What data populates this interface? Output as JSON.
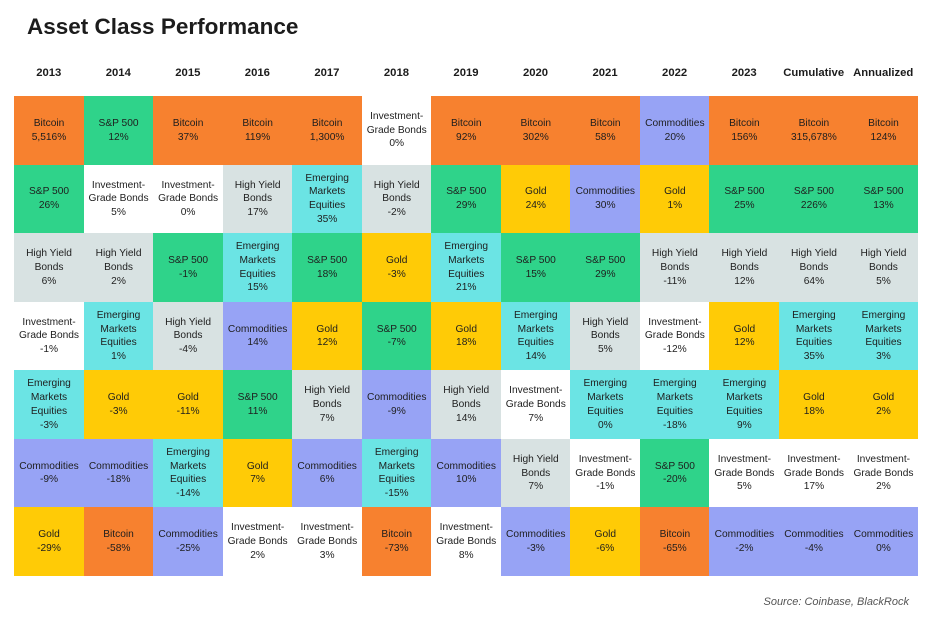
{
  "title": "Asset Class Performance",
  "source": "Source: Coinbase, BlackRock",
  "colors": {
    "Bitcoin": "#f7812f",
    "S&P 500": "#2fd38a",
    "High Yield Bonds": "#d8e2e2",
    "Investment-Grade Bonds": "#ffffff",
    "Emerging Markets Equities": "#6be4e4",
    "Gold": "#ffcb06",
    "Commodities": "#97a3f5"
  },
  "chart_data": {
    "type": "table",
    "title": "Asset Class Performance",
    "columns": [
      "2013",
      "2014",
      "2015",
      "2016",
      "2017",
      "2018",
      "2019",
      "2020",
      "2021",
      "2022",
      "2023",
      "Cumulative",
      "Annualized"
    ],
    "rows": [
      [
        {
          "asset": "Bitcoin",
          "label": [
            "Bitcoin"
          ],
          "value": "5,516%"
        },
        {
          "asset": "S&P 500",
          "label": [
            "S&P 500"
          ],
          "value": "26%"
        },
        {
          "asset": "High Yield Bonds",
          "label": [
            "High Yield",
            "Bonds"
          ],
          "value": "6%"
        },
        {
          "asset": "Investment-Grade Bonds",
          "label": [
            "Investment-",
            "Grade Bonds"
          ],
          "value": "-1%"
        },
        {
          "asset": "Emerging Markets Equities",
          "label": [
            "Emerging",
            "Markets",
            "Equities"
          ],
          "value": "-3%"
        },
        {
          "asset": "Commodities",
          "label": [
            "Commodities"
          ],
          "value": "-9%"
        },
        {
          "asset": "Gold",
          "label": [
            "Gold"
          ],
          "value": "-29%"
        }
      ],
      [
        {
          "asset": "S&P 500",
          "label": [
            "S&P 500"
          ],
          "value": "12%"
        },
        {
          "asset": "Investment-Grade Bonds",
          "label": [
            "Investment-",
            "Grade Bonds"
          ],
          "value": "5%"
        },
        {
          "asset": "High Yield Bonds",
          "label": [
            "High Yield",
            "Bonds"
          ],
          "value": "2%"
        },
        {
          "asset": "Emerging Markets Equities",
          "label": [
            "Emerging",
            "Markets",
            "Equities"
          ],
          "value": "1%"
        },
        {
          "asset": "Gold",
          "label": [
            "Gold"
          ],
          "value": "-3%"
        },
        {
          "asset": "Commodities",
          "label": [
            "Commodities"
          ],
          "value": "-18%"
        },
        {
          "asset": "Bitcoin",
          "label": [
            "Bitcoin"
          ],
          "value": "-58%"
        }
      ],
      [
        {
          "asset": "Bitcoin",
          "label": [
            "Bitcoin"
          ],
          "value": "37%"
        },
        {
          "asset": "Investment-Grade Bonds",
          "label": [
            "Investment-",
            "Grade Bonds"
          ],
          "value": "0%"
        },
        {
          "asset": "S&P 500",
          "label": [
            "S&P 500"
          ],
          "value": "-1%"
        },
        {
          "asset": "High Yield Bonds",
          "label": [
            "High Yield",
            "Bonds"
          ],
          "value": "-4%"
        },
        {
          "asset": "Gold",
          "label": [
            "Gold"
          ],
          "value": "-11%"
        },
        {
          "asset": "Emerging Markets Equities",
          "label": [
            "Emerging",
            "Markets",
            "Equities"
          ],
          "value": "-14%"
        },
        {
          "asset": "Commodities",
          "label": [
            "Commodities"
          ],
          "value": "-25%"
        }
      ],
      [
        {
          "asset": "Bitcoin",
          "label": [
            "Bitcoin"
          ],
          "value": "119%"
        },
        {
          "asset": "High Yield Bonds",
          "label": [
            "High Yield",
            "Bonds"
          ],
          "value": "17%"
        },
        {
          "asset": "Emerging Markets Equities",
          "label": [
            "Emerging",
            "Markets",
            "Equities"
          ],
          "value": "15%"
        },
        {
          "asset": "Commodities",
          "label": [
            "Commodities"
          ],
          "value": "14%"
        },
        {
          "asset": "S&P 500",
          "label": [
            "S&P 500"
          ],
          "value": "11%"
        },
        {
          "asset": "Gold",
          "label": [
            "Gold"
          ],
          "value": "7%"
        },
        {
          "asset": "Investment-Grade Bonds",
          "label": [
            "Investment-",
            "Grade Bonds"
          ],
          "value": "2%"
        }
      ],
      [
        {
          "asset": "Bitcoin",
          "label": [
            "Bitcoin"
          ],
          "value": "1,300%"
        },
        {
          "asset": "Emerging Markets Equities",
          "label": [
            "Emerging",
            "Markets",
            "Equities"
          ],
          "value": "35%"
        },
        {
          "asset": "S&P 500",
          "label": [
            "S&P 500"
          ],
          "value": "18%"
        },
        {
          "asset": "Gold",
          "label": [
            "Gold"
          ],
          "value": "12%"
        },
        {
          "asset": "High Yield Bonds",
          "label": [
            "High Yield",
            "Bonds"
          ],
          "value": "7%"
        },
        {
          "asset": "Commodities",
          "label": [
            "Commodities"
          ],
          "value": "6%"
        },
        {
          "asset": "Investment-Grade Bonds",
          "label": [
            "Investment-",
            "Grade Bonds"
          ],
          "value": "3%"
        }
      ],
      [
        {
          "asset": "Investment-Grade Bonds",
          "label": [
            "Investment-",
            "Grade Bonds"
          ],
          "value": "0%"
        },
        {
          "asset": "High Yield Bonds",
          "label": [
            "High Yield",
            "Bonds"
          ],
          "value": "-2%"
        },
        {
          "asset": "Gold",
          "label": [
            "Gold"
          ],
          "value": "-3%"
        },
        {
          "asset": "S&P 500",
          "label": [
            "S&P 500"
          ],
          "value": "-7%"
        },
        {
          "asset": "Commodities",
          "label": [
            "Commodities"
          ],
          "value": "-9%"
        },
        {
          "asset": "Emerging Markets Equities",
          "label": [
            "Emerging",
            "Markets",
            "Equities"
          ],
          "value": "-15%"
        },
        {
          "asset": "Bitcoin",
          "label": [
            "Bitcoin"
          ],
          "value": "-73%"
        }
      ],
      [
        {
          "asset": "Bitcoin",
          "label": [
            "Bitcoin"
          ],
          "value": "92%"
        },
        {
          "asset": "S&P 500",
          "label": [
            "S&P 500"
          ],
          "value": "29%"
        },
        {
          "asset": "Emerging Markets Equities",
          "label": [
            "Emerging",
            "Markets",
            "Equities"
          ],
          "value": "21%"
        },
        {
          "asset": "Gold",
          "label": [
            "Gold"
          ],
          "value": "18%"
        },
        {
          "asset": "High Yield Bonds",
          "label": [
            "High Yield",
            "Bonds"
          ],
          "value": "14%"
        },
        {
          "asset": "Commodities",
          "label": [
            "Commodities"
          ],
          "value": "10%"
        },
        {
          "asset": "Investment-Grade Bonds",
          "label": [
            "Investment-",
            "Grade Bonds"
          ],
          "value": "8%"
        }
      ],
      [
        {
          "asset": "Bitcoin",
          "label": [
            "Bitcoin"
          ],
          "value": "302%"
        },
        {
          "asset": "Gold",
          "label": [
            "Gold"
          ],
          "value": "24%"
        },
        {
          "asset": "S&P 500",
          "label": [
            "S&P 500"
          ],
          "value": "15%"
        },
        {
          "asset": "Emerging Markets Equities",
          "label": [
            "Emerging",
            "Markets",
            "Equities"
          ],
          "value": "14%"
        },
        {
          "asset": "Investment-Grade Bonds",
          "label": [
            "Investment-",
            "Grade Bonds"
          ],
          "value": "7%"
        },
        {
          "asset": "High Yield Bonds",
          "label": [
            "High Yield",
            "Bonds"
          ],
          "value": "7%"
        },
        {
          "asset": "Commodities",
          "label": [
            "Commodities"
          ],
          "value": "-3%"
        }
      ],
      [
        {
          "asset": "Bitcoin",
          "label": [
            "Bitcoin"
          ],
          "value": "58%"
        },
        {
          "asset": "Commodities",
          "label": [
            "Commodities"
          ],
          "value": "30%"
        },
        {
          "asset": "S&P 500",
          "label": [
            "S&P 500"
          ],
          "value": "29%"
        },
        {
          "asset": "High Yield Bonds",
          "label": [
            "High Yield",
            "Bonds"
          ],
          "value": "5%"
        },
        {
          "asset": "Emerging Markets Equities",
          "label": [
            "Emerging",
            "Markets",
            "Equities"
          ],
          "value": "0%"
        },
        {
          "asset": "Investment-Grade Bonds",
          "label": [
            "Investment-",
            "Grade Bonds"
          ],
          "value": "-1%"
        },
        {
          "asset": "Gold",
          "label": [
            "Gold"
          ],
          "value": "-6%"
        }
      ],
      [
        {
          "asset": "Commodities",
          "label": [
            "Commodities"
          ],
          "value": "20%"
        },
        {
          "asset": "Gold",
          "label": [
            "Gold"
          ],
          "value": "1%"
        },
        {
          "asset": "High Yield Bonds",
          "label": [
            "High Yield",
            "Bonds"
          ],
          "value": "-11%"
        },
        {
          "asset": "Investment-Grade Bonds",
          "label": [
            "Investment-",
            "Grade Bonds"
          ],
          "value": "-12%"
        },
        {
          "asset": "Emerging Markets Equities",
          "label": [
            "Emerging",
            "Markets",
            "Equities"
          ],
          "value": "-18%"
        },
        {
          "asset": "S&P 500",
          "label": [
            "S&P 500"
          ],
          "value": "-20%"
        },
        {
          "asset": "Bitcoin",
          "label": [
            "Bitcoin"
          ],
          "value": "-65%"
        }
      ],
      [
        {
          "asset": "Bitcoin",
          "label": [
            "Bitcoin"
          ],
          "value": "156%"
        },
        {
          "asset": "S&P 500",
          "label": [
            "S&P 500"
          ],
          "value": "25%"
        },
        {
          "asset": "High Yield Bonds",
          "label": [
            "High Yield",
            "Bonds"
          ],
          "value": "12%"
        },
        {
          "asset": "Gold",
          "label": [
            "Gold"
          ],
          "value": "12%"
        },
        {
          "asset": "Emerging Markets Equities",
          "label": [
            "Emerging",
            "Markets",
            "Equities"
          ],
          "value": "9%"
        },
        {
          "asset": "Investment-Grade Bonds",
          "label": [
            "Investment-",
            "Grade Bonds"
          ],
          "value": "5%"
        },
        {
          "asset": "Commodities",
          "label": [
            "Commodities"
          ],
          "value": "-2%"
        }
      ],
      [
        {
          "asset": "Bitcoin",
          "label": [
            "Bitcoin"
          ],
          "value": "315,678%"
        },
        {
          "asset": "S&P 500",
          "label": [
            "S&P 500"
          ],
          "value": "226%"
        },
        {
          "asset": "High Yield Bonds",
          "label": [
            "High Yield",
            "Bonds"
          ],
          "value": "64%"
        },
        {
          "asset": "Emerging Markets Equities",
          "label": [
            "Emerging",
            "Markets",
            "Equities"
          ],
          "value": "35%"
        },
        {
          "asset": "Gold",
          "label": [
            "Gold"
          ],
          "value": "18%"
        },
        {
          "asset": "Investment-Grade Bonds",
          "label": [
            "Investment-",
            "Grade Bonds"
          ],
          "value": "17%"
        },
        {
          "asset": "Commodities",
          "label": [
            "Commodities"
          ],
          "value": "-4%"
        }
      ],
      [
        {
          "asset": "Bitcoin",
          "label": [
            "Bitcoin"
          ],
          "value": "124%"
        },
        {
          "asset": "S&P 500",
          "label": [
            "S&P 500"
          ],
          "value": "13%"
        },
        {
          "asset": "High Yield Bonds",
          "label": [
            "High Yield",
            "Bonds"
          ],
          "value": "5%"
        },
        {
          "asset": "Emerging Markets Equities",
          "label": [
            "Emerging",
            "Markets",
            "Equities"
          ],
          "value": "3%"
        },
        {
          "asset": "Gold",
          "label": [
            "Gold"
          ],
          "value": "2%"
        },
        {
          "asset": "Investment-Grade Bonds",
          "label": [
            "Investment-",
            "Grade Bonds"
          ],
          "value": "2%"
        },
        {
          "asset": "Commodities",
          "label": [
            "Commodities"
          ],
          "value": "0%"
        }
      ]
    ]
  }
}
